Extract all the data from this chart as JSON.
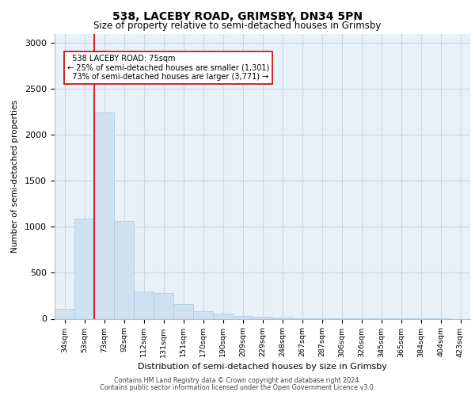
{
  "title": "538, LACEBY ROAD, GRIMSBY, DN34 5PN",
  "subtitle": "Size of property relative to semi-detached houses in Grimsby",
  "xlabel": "Distribution of semi-detached houses by size in Grimsby",
  "ylabel": "Number of semi-detached properties",
  "categories": [
    "34sqm",
    "53sqm",
    "73sqm",
    "92sqm",
    "112sqm",
    "131sqm",
    "151sqm",
    "170sqm",
    "190sqm",
    "209sqm",
    "229sqm",
    "248sqm",
    "267sqm",
    "287sqm",
    "306sqm",
    "326sqm",
    "345sqm",
    "365sqm",
    "384sqm",
    "404sqm",
    "423sqm"
  ],
  "values": [
    110,
    1090,
    2240,
    1060,
    300,
    280,
    160,
    80,
    55,
    30,
    20,
    10,
    7,
    5,
    3,
    2,
    2,
    1,
    1,
    1,
    0
  ],
  "bar_color": "#cfe0f0",
  "bar_edge_color": "#a8c8e0",
  "property_line_index": 2,
  "property_label": "538 LACEBY ROAD: 75sqm",
  "smaller_pct": "25%",
  "smaller_count": "1,301",
  "larger_pct": "73%",
  "larger_count": "3,771",
  "annotation_line_color": "#cc0000",
  "annotation_box_color": "#ffffff",
  "annotation_box_edge_color": "#cc0000",
  "grid_color": "#c8d8e8",
  "background_color": "#e8f0f8",
  "ylim": [
    0,
    3100
  ],
  "yticks": [
    0,
    500,
    1000,
    1500,
    2000,
    2500,
    3000
  ],
  "footer_line1": "Contains HM Land Registry data © Crown copyright and database right 2024.",
  "footer_line2": "Contains public sector information licensed under the Open Government Licence v3.0."
}
